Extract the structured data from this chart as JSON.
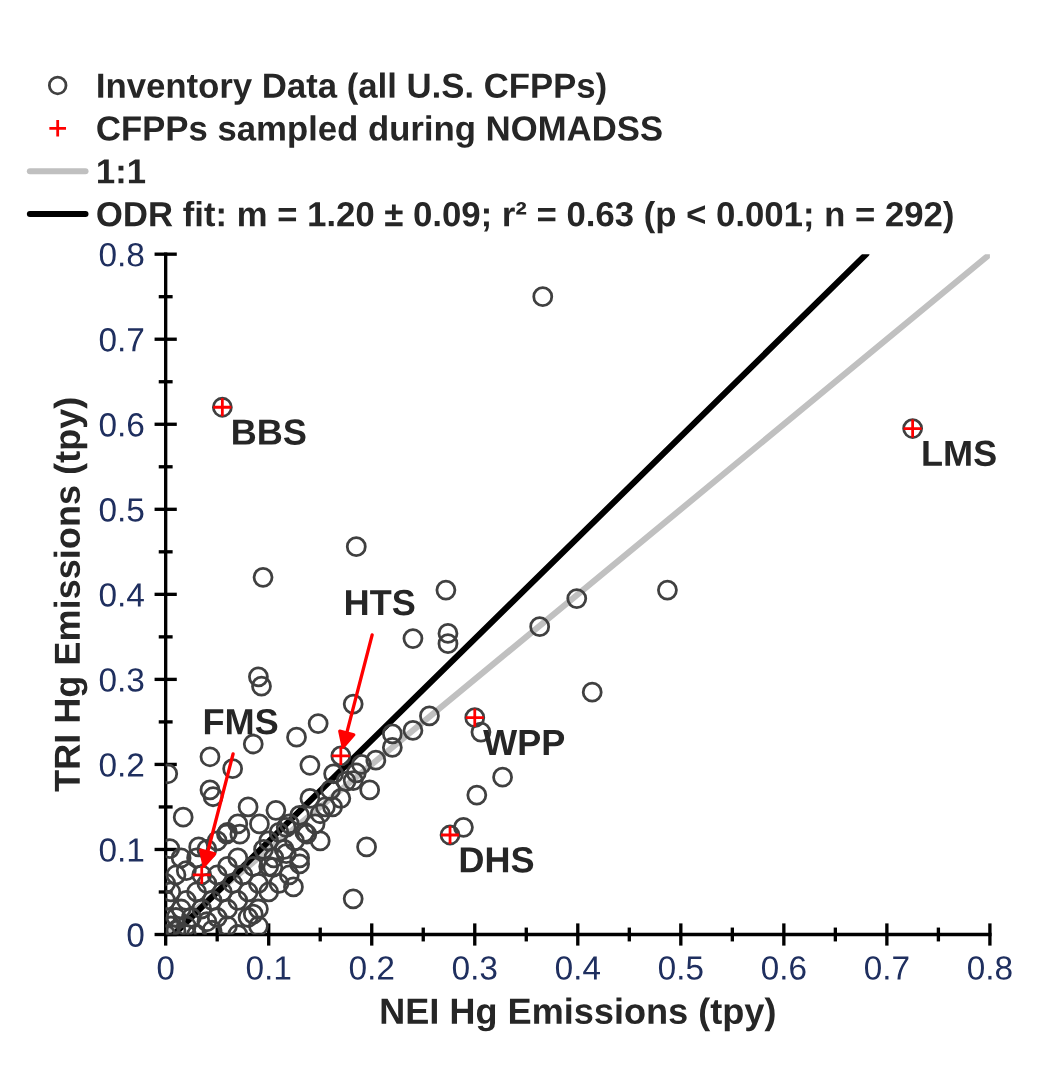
{
  "chart_data": {
    "type": "scatter",
    "xlabel": "NEI Hg Emissions (tpy)",
    "ylabel": "TRI Hg Emissions (tpy)",
    "xlim": [
      0,
      0.8
    ],
    "ylim": [
      0,
      0.8
    ],
    "xticks": [
      0,
      {
        "value": 0.05,
        "label": null
      },
      0.1,
      {
        "value": 0.15,
        "label": null
      },
      0.2,
      {
        "value": 0.25,
        "label": null
      },
      0.3,
      {
        "value": 0.35,
        "label": null
      },
      0.4,
      {
        "value": 0.45,
        "label": null
      },
      0.5,
      {
        "value": 0.55,
        "label": null
      },
      0.6,
      {
        "value": 0.65,
        "label": null
      },
      0.7,
      {
        "value": 0.75,
        "label": null
      },
      0.8
    ],
    "yticks": [
      0,
      {
        "value": 0.05,
        "label": null
      },
      0.1,
      {
        "value": 0.15,
        "label": null
      },
      0.2,
      {
        "value": 0.25,
        "label": null
      },
      0.3,
      {
        "value": 0.35,
        "label": null
      },
      0.4,
      {
        "value": 0.45,
        "label": null
      },
      0.5,
      {
        "value": 0.55,
        "label": null
      },
      0.6,
      {
        "value": 0.65,
        "label": null
      },
      0.7,
      {
        "value": 0.75,
        "label": null
      },
      0.8
    ],
    "legend": "top",
    "grid": false,
    "series": [
      {
        "name": "Inventory Data (all U.S. CFPPs)",
        "marker": "circle",
        "color": "#404040",
        "x": [
          0.0945,
          0.272,
          0.24,
          0.274,
          0.274,
          0.09,
          0.093,
          0.182,
          0.148,
          0.127,
          0.085,
          0.043,
          0.065,
          0.002,
          0.14,
          0.163,
          0.182,
          0.198,
          0.043,
          0.046,
          0.256,
          0.24,
          0.22,
          0.22,
          0.204,
          0.017,
          0.107,
          0.091,
          0.059,
          0.072,
          0.004,
          0.032,
          0.15,
          0.162,
          0.117,
          0.137,
          0.15,
          0.117,
          0.13,
          0.195,
          0.104,
          0.124,
          0.182,
          0.085,
          0.399,
          0.487,
          0.363,
          0.414,
          0.306,
          0.327,
          0.302,
          0.289,
          0.366,
          0.185,
          0.0,
          0.005,
          0.01,
          0.01,
          0.015,
          0.02,
          0.02,
          0.025,
          0.03,
          0.03,
          0.035,
          0.04,
          0.04,
          0.045,
          0.05,
          0.05,
          0.055,
          0.06,
          0.06,
          0.065,
          0.07,
          0.07,
          0.075,
          0.08,
          0.085,
          0.09,
          0.095,
          0.1,
          0.1,
          0.105,
          0.11,
          0.115,
          0.12,
          0.125,
          0.13,
          0.135,
          0.14,
          0.145,
          0.155,
          0.16,
          0.17,
          0.175,
          0.185,
          0.19,
          0.0,
          0.0,
          0.005,
          0.01,
          0.02,
          0.015,
          0.03,
          0.04,
          0.05,
          0.06,
          0.07,
          0.08,
          0.06,
          0.08,
          0.09,
          0.1,
          0.11,
          0.12,
          0.13,
          0.0,
          0.02,
          0.045,
          0.07,
          0.09,
          0.055,
          0.725,
          0.3,
          0.276,
          0.17,
          0.035
        ],
        "values": [
          0.42,
          0.405,
          0.348,
          0.354,
          0.342,
          0.303,
          0.292,
          0.271,
          0.248,
          0.232,
          0.224,
          0.209,
          0.195,
          0.189,
          0.199,
          0.189,
          0.181,
          0.17,
          0.17,
          0.162,
          0.257,
          0.24,
          0.236,
          0.22,
          0.205,
          0.138,
          0.146,
          0.13,
          0.118,
          0.118,
          0.101,
          0.103,
          0.142,
          0.15,
          0.126,
          0.118,
          0.11,
          0.095,
          0.083,
          0.103,
          0.079,
          0.056,
          0.042,
          0.024,
          0.395,
          0.405,
          0.362,
          0.285,
          0.238,
          0.185,
          0.164,
          0.126,
          0.75,
          0.456,
          0.0,
          0.01,
          0.02,
          0.005,
          0.03,
          0.01,
          0.04,
          0.02,
          0.05,
          0.0,
          0.03,
          0.015,
          0.06,
          0.04,
          0.02,
          0.07,
          0.05,
          0.03,
          0.08,
          0.06,
          0.04,
          0.09,
          0.07,
          0.05,
          0.08,
          0.06,
          0.1,
          0.08,
          0.11,
          0.09,
          0.12,
          0.1,
          0.13,
          0.11,
          0.14,
          0.12,
          0.16,
          0.13,
          0.15,
          0.17,
          0.16,
          0.18,
          0.19,
          0.2,
          0.04,
          0.06,
          0.05,
          0.07,
          0.075,
          0.09,
          0.09,
          0.1,
          0.11,
          0.12,
          0.13,
          0.15,
          0.01,
          0.02,
          0.03,
          0.05,
          0.06,
          0.07,
          0.09,
          0.02,
          0.0,
          0.005,
          0.0,
          0.01,
          0.62,
          0.595,
          0.255,
          0.117,
          0.21,
          0.07
        ]
      },
      {
        "name": "CFPPs sampled during NOMADSS",
        "marker": "cross",
        "color": "#ff0000",
        "x": [
          0.055,
          0.725,
          0.3,
          0.276,
          0.17,
          0.035
        ],
        "values": [
          0.62,
          0.595,
          0.255,
          0.117,
          0.21,
          0.07
        ]
      },
      {
        "name": "1:1",
        "type": "line",
        "line_style": "solid",
        "color": "#c0c0c0",
        "x": [
          0,
          0.8
        ],
        "values": [
          0,
          0.8
        ]
      },
      {
        "name": "ODR fit: m = 1.20 ± 0.09; r² = 0.63 (p < 0.001; n = 292)",
        "type": "line",
        "line_style": "solid",
        "color": "#000000",
        "x": [
          0.008,
          0.68
        ],
        "values": [
          0,
          0.8
        ]
      }
    ],
    "annotations": [
      {
        "text": "BBS",
        "x": 0.055,
        "y": 0.62
      },
      {
        "text": "LMS",
        "x": 0.725,
        "y": 0.595
      },
      {
        "text": "WPP",
        "x": 0.3,
        "y": 0.255
      },
      {
        "text": "DHS",
        "x": 0.276,
        "y": 0.117
      },
      {
        "text": "HTS",
        "x": 0.17,
        "y": 0.21
      },
      {
        "text": "FMS",
        "x": 0.035,
        "y": 0.07
      }
    ]
  }
}
